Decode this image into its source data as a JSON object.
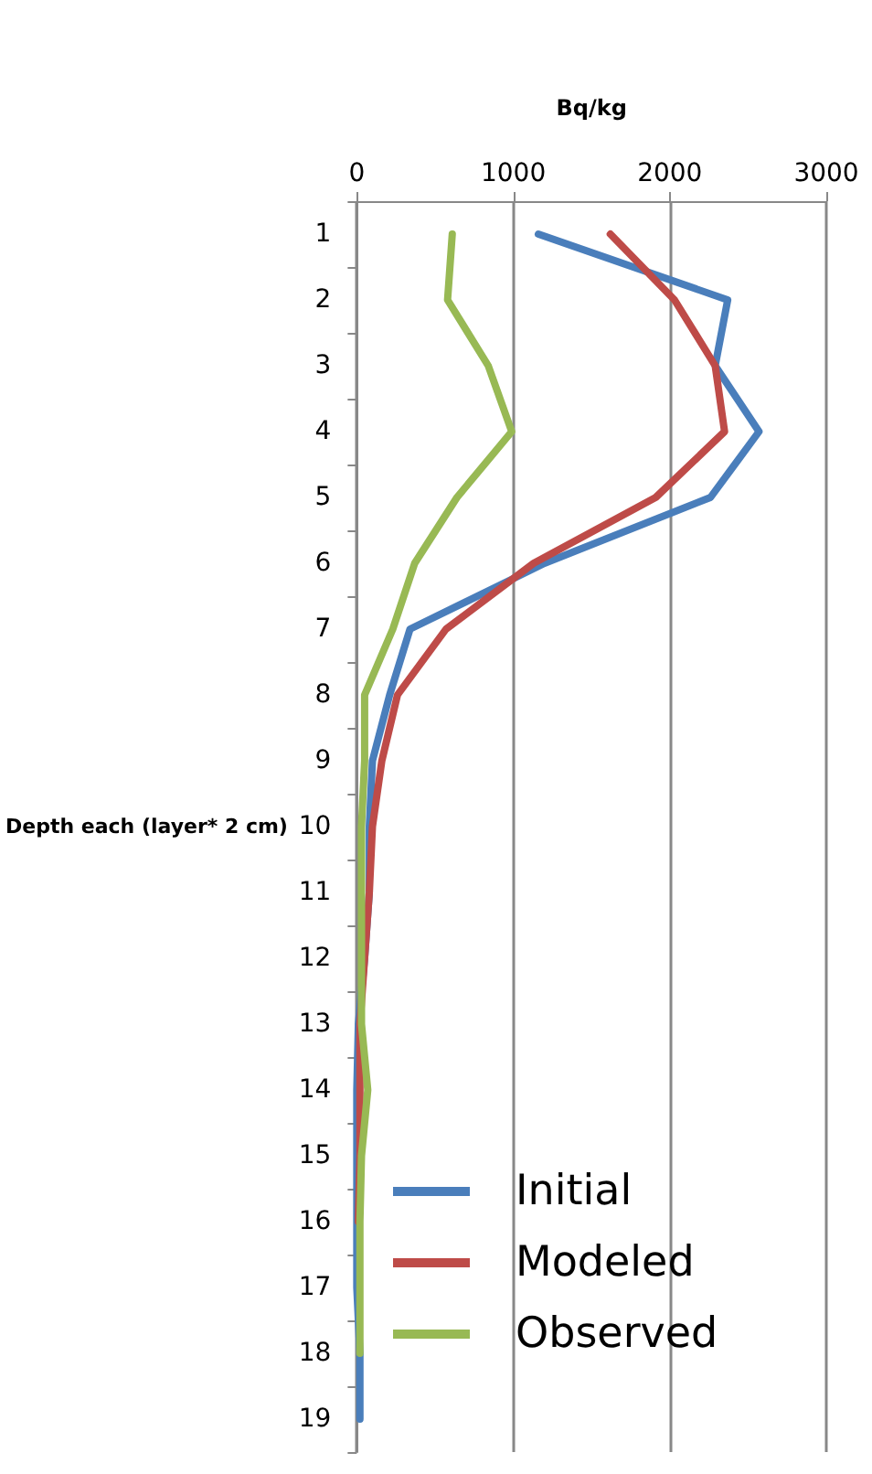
{
  "chart_data": {
    "type": "line",
    "xlabel": "Bq/kg",
    "ylabel": "Depth each (layer* 2 cm)",
    "categories": [
      "1",
      "2",
      "3",
      "4",
      "5",
      "6",
      "7",
      "8",
      "9",
      "10",
      "11",
      "12",
      "13",
      "14",
      "15",
      "16",
      "17",
      "18",
      "19"
    ],
    "orientation": "horizontal",
    "xlim": [
      0,
      3000
    ],
    "xticks": [
      0,
      1000,
      2000,
      3000
    ],
    "grid": "x",
    "legend": "bottom",
    "marker": "none",
    "line_style": "solid",
    "series": [
      {
        "name": "Initial",
        "color": "#4a7ebb",
        "values": [
          1160,
          2370,
          2290,
          2570,
          2260,
          1200,
          340,
          210,
          100,
          80,
          80,
          50,
          10,
          0,
          0,
          0,
          0,
          20,
          20
        ]
      },
      {
        "name": "Modeled",
        "color": "#be4b48",
        "values": [
          1620,
          2030,
          2290,
          2350,
          1910,
          1130,
          570,
          260,
          160,
          100,
          80,
          50,
          20,
          20,
          20,
          10,
          null,
          null,
          null
        ]
      },
      {
        "name": "Observed",
        "color": "#98b954",
        "values": [
          610,
          580,
          840,
          990,
          640,
          370,
          230,
          50,
          50,
          30,
          30,
          30,
          30,
          70,
          30,
          20,
          20,
          20,
          null
        ]
      }
    ]
  }
}
